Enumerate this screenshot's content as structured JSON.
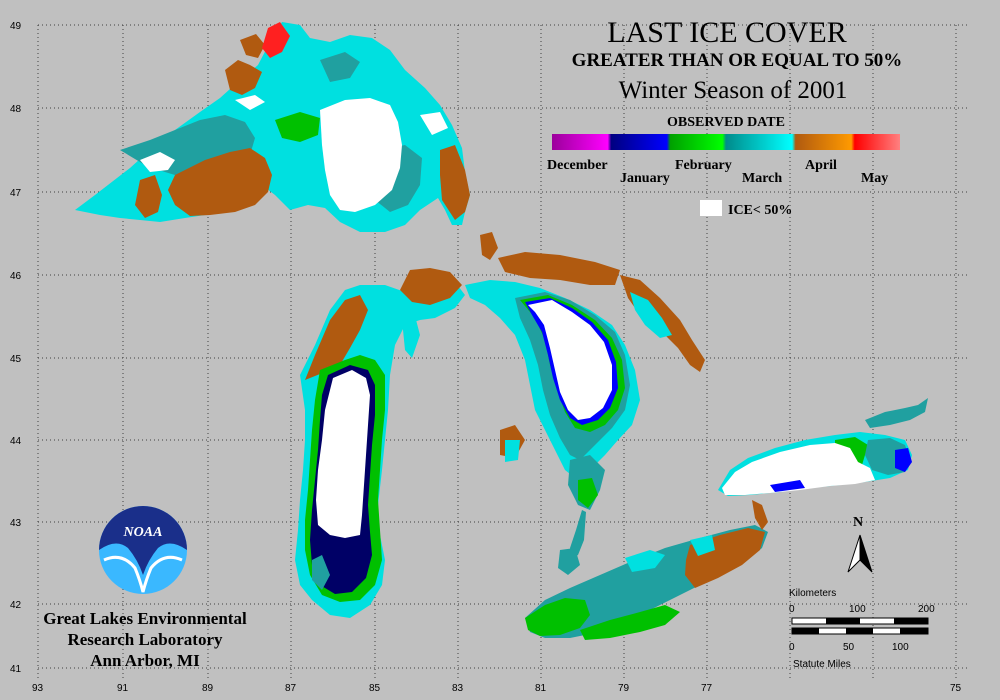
{
  "title": {
    "main": "LAST ICE COVER",
    "subtitle": "GREATER THAN OR EQUAL TO 50%",
    "season": "Winter Season of 2001"
  },
  "legend": {
    "heading": "OBSERVED DATE",
    "months": [
      "December",
      "January",
      "February",
      "March",
      "April",
      "May"
    ],
    "gradient_colors": [
      "#9b009b",
      "#ff00ff",
      "#000080",
      "#0000ff",
      "#00a000",
      "#00ff00",
      "#008b8b",
      "#00ffff",
      "#b05a10",
      "#ff9a00",
      "#ff0000",
      "#ff8080"
    ],
    "ice_low_label": "ICE< 50%",
    "ice_low_color": "#ffffff"
  },
  "axes": {
    "latitude_labels": [
      "49",
      "48",
      "47",
      "46",
      "45",
      "44",
      "43",
      "42",
      "41"
    ],
    "longitude_labels": [
      "93",
      "91",
      "89",
      "87",
      "85",
      "83",
      "81",
      "79",
      "77",
      "75"
    ]
  },
  "institution": {
    "logo_text": "NOAA",
    "line1": "Great Lakes Environmental",
    "line2": "Research Laboratory",
    "line3": "Ann Arbor, MI"
  },
  "scale_bar": {
    "km_label": "Kilometers",
    "km_ticks": [
      "0",
      "100",
      "200"
    ],
    "mi_ticks": [
      "0",
      "50",
      "100"
    ],
    "mi_label": "Statute Miles"
  },
  "north_arrow": {
    "label": "N"
  },
  "colors": {
    "background": "#c0c0c0",
    "grid": "#404040",
    "lake_open": "#ffffff",
    "march_cyan": "#00e0e0",
    "march_teal": "#20a0a0",
    "april_brown": "#b05a10",
    "feb_green": "#00c000",
    "jan_navy": "#000066",
    "may_red": "#ff2020",
    "noaa_blue": "#1a2f8a",
    "noaa_light": "#3ab8ff"
  }
}
